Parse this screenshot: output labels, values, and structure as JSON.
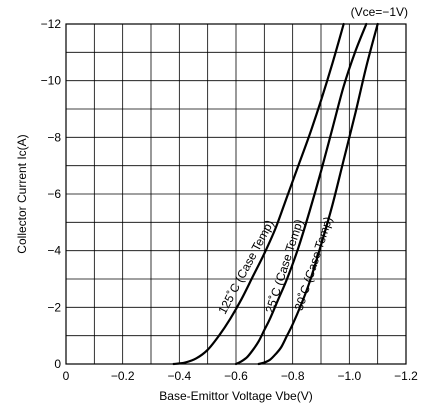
{
  "chart_data": {
    "type": "line",
    "condition": "(Vce=−1V)",
    "xlabel": "Base-Emittor Voltage Vbe(V)",
    "ylabel": "Collector Current Ic(A)",
    "xlim": [
      0,
      -1.2
    ],
    "ylim": [
      0,
      -12
    ],
    "x_ticks": [
      0,
      -0.2,
      -0.4,
      -0.6,
      -0.8,
      -1.0,
      -1.2
    ],
    "x_tick_labels": [
      "0",
      "−0.2",
      "−0.4",
      "−0.6",
      "−0.8",
      "−1.0",
      "−1.2"
    ],
    "y_ticks": [
      0,
      -2,
      -4,
      -6,
      -8,
      -10,
      -12
    ],
    "y_tick_labels": [
      "0",
      "−2",
      "−4",
      "−6",
      "−8",
      "−10",
      "−12"
    ],
    "grid": true,
    "series": [
      {
        "name": "125°C (Case Temp)",
        "x": [
          -0.38,
          -0.42,
          -0.46,
          -0.5,
          -0.54,
          -0.58,
          -0.62,
          -0.66,
          -0.7,
          -0.74,
          -0.78,
          -0.82,
          -0.86,
          -0.9,
          -0.94,
          -0.98
        ],
        "y": [
          0,
          -0.05,
          -0.2,
          -0.5,
          -1.0,
          -1.6,
          -2.3,
          -3.1,
          -3.9,
          -4.8,
          -5.9,
          -7.0,
          -8.1,
          -9.3,
          -10.6,
          -12.0
        ]
      },
      {
        "name": "25°C (Case Temp)",
        "x": [
          -0.6,
          -0.62,
          -0.64,
          -0.66,
          -0.68,
          -0.7,
          -0.72,
          -0.75,
          -0.78,
          -0.82,
          -0.86,
          -0.9,
          -0.94,
          -0.98,
          -1.02,
          -1.06
        ],
        "y": [
          0,
          -0.1,
          -0.25,
          -0.5,
          -0.8,
          -1.2,
          -1.6,
          -2.3,
          -3.0,
          -4.1,
          -5.4,
          -6.8,
          -8.3,
          -9.8,
          -11.0,
          -12.0
        ]
      },
      {
        "name": "−30°C (Case Temp)",
        "x": [
          -0.68,
          -0.7,
          -0.72,
          -0.74,
          -0.76,
          -0.78,
          -0.8,
          -0.83,
          -0.86,
          -0.9,
          -0.94,
          -0.98,
          -1.02,
          -1.06,
          -1.1
        ],
        "y": [
          0,
          -0.05,
          -0.15,
          -0.35,
          -0.6,
          -1.0,
          -1.4,
          -2.1,
          -2.9,
          -4.2,
          -5.6,
          -7.2,
          -8.8,
          -10.5,
          -12.0
        ]
      }
    ],
    "curve_labels": [
      "125˚C (Case Temp)",
      "25˚C (Case Temp)",
      "−30˚C (Case Temp)"
    ]
  }
}
